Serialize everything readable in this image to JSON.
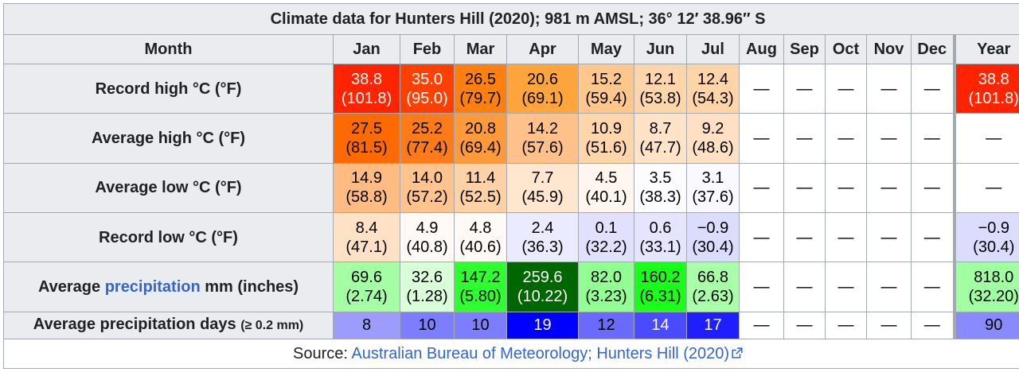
{
  "title": "Climate data for Hunters Hill (2020); 981 m AMSL; 36° 12′ 38.96″ S",
  "header": {
    "month_label": "Month",
    "months": [
      "Jan",
      "Feb",
      "Mar",
      "Apr",
      "May",
      "Jun",
      "Jul",
      "Aug",
      "Sep",
      "Oct",
      "Nov",
      "Dec"
    ],
    "year_label": "Year"
  },
  "rows": [
    {
      "label": "Record high °C (°F)",
      "cells": [
        {
          "c": "38.8",
          "f": "(101.8)",
          "bg": "#ff2400",
          "fg": "#ffffff"
        },
        {
          "c": "35.0",
          "f": "(95.0)",
          "bg": "#ff4000",
          "fg": "#ffffff"
        },
        {
          "c": "26.5",
          "f": "(79.7)",
          "bg": "#ff8010",
          "fg": "#000000"
        },
        {
          "c": "20.6",
          "f": "(69.1)",
          "bg": "#ffa53c",
          "fg": "#000000"
        },
        {
          "c": "15.2",
          "f": "(59.4)",
          "bg": "#ffc78c",
          "fg": "#000000"
        },
        {
          "c": "12.1",
          "f": "(53.8)",
          "bg": "#ffd6a9",
          "fg": "#000000"
        },
        {
          "c": "12.4",
          "f": "(54.3)",
          "bg": "#ffd4a6",
          "fg": "#000000"
        },
        {
          "c": "—",
          "f": "",
          "bg": "#ffffff",
          "fg": "#000000"
        },
        {
          "c": "—",
          "f": "",
          "bg": "#ffffff",
          "fg": "#000000"
        },
        {
          "c": "—",
          "f": "",
          "bg": "#ffffff",
          "fg": "#000000"
        },
        {
          "c": "—",
          "f": "",
          "bg": "#ffffff",
          "fg": "#000000"
        },
        {
          "c": "—",
          "f": "",
          "bg": "#ffffff",
          "fg": "#000000"
        }
      ],
      "year": {
        "c": "38.8",
        "f": "(101.8)",
        "bg": "#ff2400",
        "fg": "#ffffff"
      }
    },
    {
      "label": "Average high °C (°F)",
      "cells": [
        {
          "c": "27.5",
          "f": "(81.5)",
          "bg": "#ff6a00",
          "fg": "#000000"
        },
        {
          "c": "25.2",
          "f": "(77.4)",
          "bg": "#ff7a18",
          "fg": "#000000"
        },
        {
          "c": "20.8",
          "f": "(69.4)",
          "bg": "#ff9a3a",
          "fg": "#000000"
        },
        {
          "c": "14.2",
          "f": "(57.6)",
          "bg": "#ffc189",
          "fg": "#000000"
        },
        {
          "c": "10.9",
          "f": "(51.6)",
          "bg": "#ffd6aa",
          "fg": "#000000"
        },
        {
          "c": "8.7",
          "f": "(47.7)",
          "bg": "#ffe3c7",
          "fg": "#000000"
        },
        {
          "c": "9.2",
          "f": "(48.6)",
          "bg": "#ffe0c2",
          "fg": "#000000"
        },
        {
          "c": "—",
          "f": "",
          "bg": "#ffffff",
          "fg": "#000000"
        },
        {
          "c": "—",
          "f": "",
          "bg": "#ffffff",
          "fg": "#000000"
        },
        {
          "c": "—",
          "f": "",
          "bg": "#ffffff",
          "fg": "#000000"
        },
        {
          "c": "—",
          "f": "",
          "bg": "#ffffff",
          "fg": "#000000"
        },
        {
          "c": "—",
          "f": "",
          "bg": "#ffffff",
          "fg": "#000000"
        }
      ],
      "year": {
        "c": "—",
        "f": "",
        "bg": "#ffffff",
        "fg": "#000000"
      }
    },
    {
      "label": "Average low °C (°F)",
      "cells": [
        {
          "c": "14.9",
          "f": "(58.8)",
          "bg": "#ffbb80",
          "fg": "#000000"
        },
        {
          "c": "14.0",
          "f": "(57.2)",
          "bg": "#ffc38e",
          "fg": "#000000"
        },
        {
          "c": "11.4",
          "f": "(52.5)",
          "bg": "#ffd1a4",
          "fg": "#000000"
        },
        {
          "c": "7.7",
          "f": "(45.9)",
          "bg": "#ffe6cf",
          "fg": "#000000"
        },
        {
          "c": "4.5",
          "f": "(40.1)",
          "bg": "#fff7ef",
          "fg": "#000000"
        },
        {
          "c": "3.5",
          "f": "(38.3)",
          "bg": "#fcfcff",
          "fg": "#000000"
        },
        {
          "c": "3.1",
          "f": "(37.6)",
          "bg": "#f9f9ff",
          "fg": "#000000"
        },
        {
          "c": "—",
          "f": "",
          "bg": "#ffffff",
          "fg": "#000000"
        },
        {
          "c": "—",
          "f": "",
          "bg": "#ffffff",
          "fg": "#000000"
        },
        {
          "c": "—",
          "f": "",
          "bg": "#ffffff",
          "fg": "#000000"
        },
        {
          "c": "—",
          "f": "",
          "bg": "#ffffff",
          "fg": "#000000"
        },
        {
          "c": "—",
          "f": "",
          "bg": "#ffffff",
          "fg": "#000000"
        }
      ],
      "year": {
        "c": "—",
        "f": "",
        "bg": "#ffffff",
        "fg": "#000000"
      }
    },
    {
      "label": "Record low °C (°F)",
      "cells": [
        {
          "c": "8.4",
          "f": "(47.1)",
          "bg": "#ffe2c5",
          "fg": "#000000"
        },
        {
          "c": "4.9",
          "f": "(40.8)",
          "bg": "#fffaf5",
          "fg": "#000000"
        },
        {
          "c": "4.8",
          "f": "(40.6)",
          "bg": "#fffaf6",
          "fg": "#000000"
        },
        {
          "c": "2.4",
          "f": "(36.3)",
          "bg": "#ebebff",
          "fg": "#000000"
        },
        {
          "c": "0.1",
          "f": "(32.2)",
          "bg": "#e1e1ff",
          "fg": "#000000"
        },
        {
          "c": "0.6",
          "f": "(33.1)",
          "bg": "#e5e5ff",
          "fg": "#000000"
        },
        {
          "c": "−0.9",
          "f": "(30.4)",
          "bg": "#dcdcff",
          "fg": "#000000"
        },
        {
          "c": "—",
          "f": "",
          "bg": "#ffffff",
          "fg": "#000000"
        },
        {
          "c": "—",
          "f": "",
          "bg": "#ffffff",
          "fg": "#000000"
        },
        {
          "c": "—",
          "f": "",
          "bg": "#ffffff",
          "fg": "#000000"
        },
        {
          "c": "—",
          "f": "",
          "bg": "#ffffff",
          "fg": "#000000"
        },
        {
          "c": "—",
          "f": "",
          "bg": "#ffffff",
          "fg": "#000000"
        }
      ],
      "year": {
        "c": "−0.9",
        "f": "(30.4)",
        "bg": "#dcdcff",
        "fg": "#000000"
      }
    },
    {
      "label_prefix": "Average ",
      "label_link": "precipitation",
      "label_suffix": " mm (inches)",
      "cells": [
        {
          "c": "69.6",
          "f": "(2.74)",
          "bg": "#a4ffa4",
          "fg": "#000000"
        },
        {
          "c": "32.6",
          "f": "(1.28)",
          "bg": "#d8ffd8",
          "fg": "#000000"
        },
        {
          "c": "147.2",
          "f": "(5.80)",
          "bg": "#2eff2e",
          "fg": "#000000"
        },
        {
          "c": "259.6",
          "f": "(10.22)",
          "bg": "#006700",
          "fg": "#ffffff"
        },
        {
          "c": "82.0",
          "f": "(3.23)",
          "bg": "#91ff91",
          "fg": "#000000"
        },
        {
          "c": "160.2",
          "f": "(6.31)",
          "bg": "#1aff1a",
          "fg": "#000000"
        },
        {
          "c": "66.8",
          "f": "(2.63)",
          "bg": "#a8ffa8",
          "fg": "#000000"
        },
        {
          "c": "—",
          "f": "",
          "bg": "#ffffff",
          "fg": "#000000"
        },
        {
          "c": "—",
          "f": "",
          "bg": "#ffffff",
          "fg": "#000000"
        },
        {
          "c": "—",
          "f": "",
          "bg": "#ffffff",
          "fg": "#000000"
        },
        {
          "c": "—",
          "f": "",
          "bg": "#ffffff",
          "fg": "#000000"
        },
        {
          "c": "—",
          "f": "",
          "bg": "#ffffff",
          "fg": "#000000"
        }
      ],
      "year": {
        "c": "818.0",
        "f": "(32.20)",
        "bg": "#a0ffa0",
        "fg": "#000000"
      }
    },
    {
      "label_prefix": "Average precipitation days ",
      "label_small": "(≥ 0.2 mm)",
      "cells": [
        {
          "c": "8",
          "f": "",
          "bg": "#9c9cff",
          "fg": "#000000"
        },
        {
          "c": "10",
          "f": "",
          "bg": "#7d7dff",
          "fg": "#000000"
        },
        {
          "c": "10",
          "f": "",
          "bg": "#7d7dff",
          "fg": "#000000"
        },
        {
          "c": "19",
          "f": "",
          "bg": "#0000ff",
          "fg": "#ffffff"
        },
        {
          "c": "12",
          "f": "",
          "bg": "#6a6aff",
          "fg": "#000000"
        },
        {
          "c": "14",
          "f": "",
          "bg": "#4a4aff",
          "fg": "#ffffff"
        },
        {
          "c": "17",
          "f": "",
          "bg": "#1e1eff",
          "fg": "#ffffff"
        },
        {
          "c": "—",
          "f": "",
          "bg": "#ffffff",
          "fg": "#000000"
        },
        {
          "c": "—",
          "f": "",
          "bg": "#ffffff",
          "fg": "#000000"
        },
        {
          "c": "—",
          "f": "",
          "bg": "#ffffff",
          "fg": "#000000"
        },
        {
          "c": "—",
          "f": "",
          "bg": "#ffffff",
          "fg": "#000000"
        },
        {
          "c": "—",
          "f": "",
          "bg": "#ffffff",
          "fg": "#000000"
        }
      ],
      "year": {
        "c": "90",
        "f": "",
        "bg": "#8a8aff",
        "fg": "#000000"
      }
    }
  ],
  "source": {
    "label": "Source: ",
    "link_text": "Australian Bureau of Meteorology; Hunters Hill (2020)",
    "link_color": "#3366cc",
    "icon": "external-link-icon"
  }
}
